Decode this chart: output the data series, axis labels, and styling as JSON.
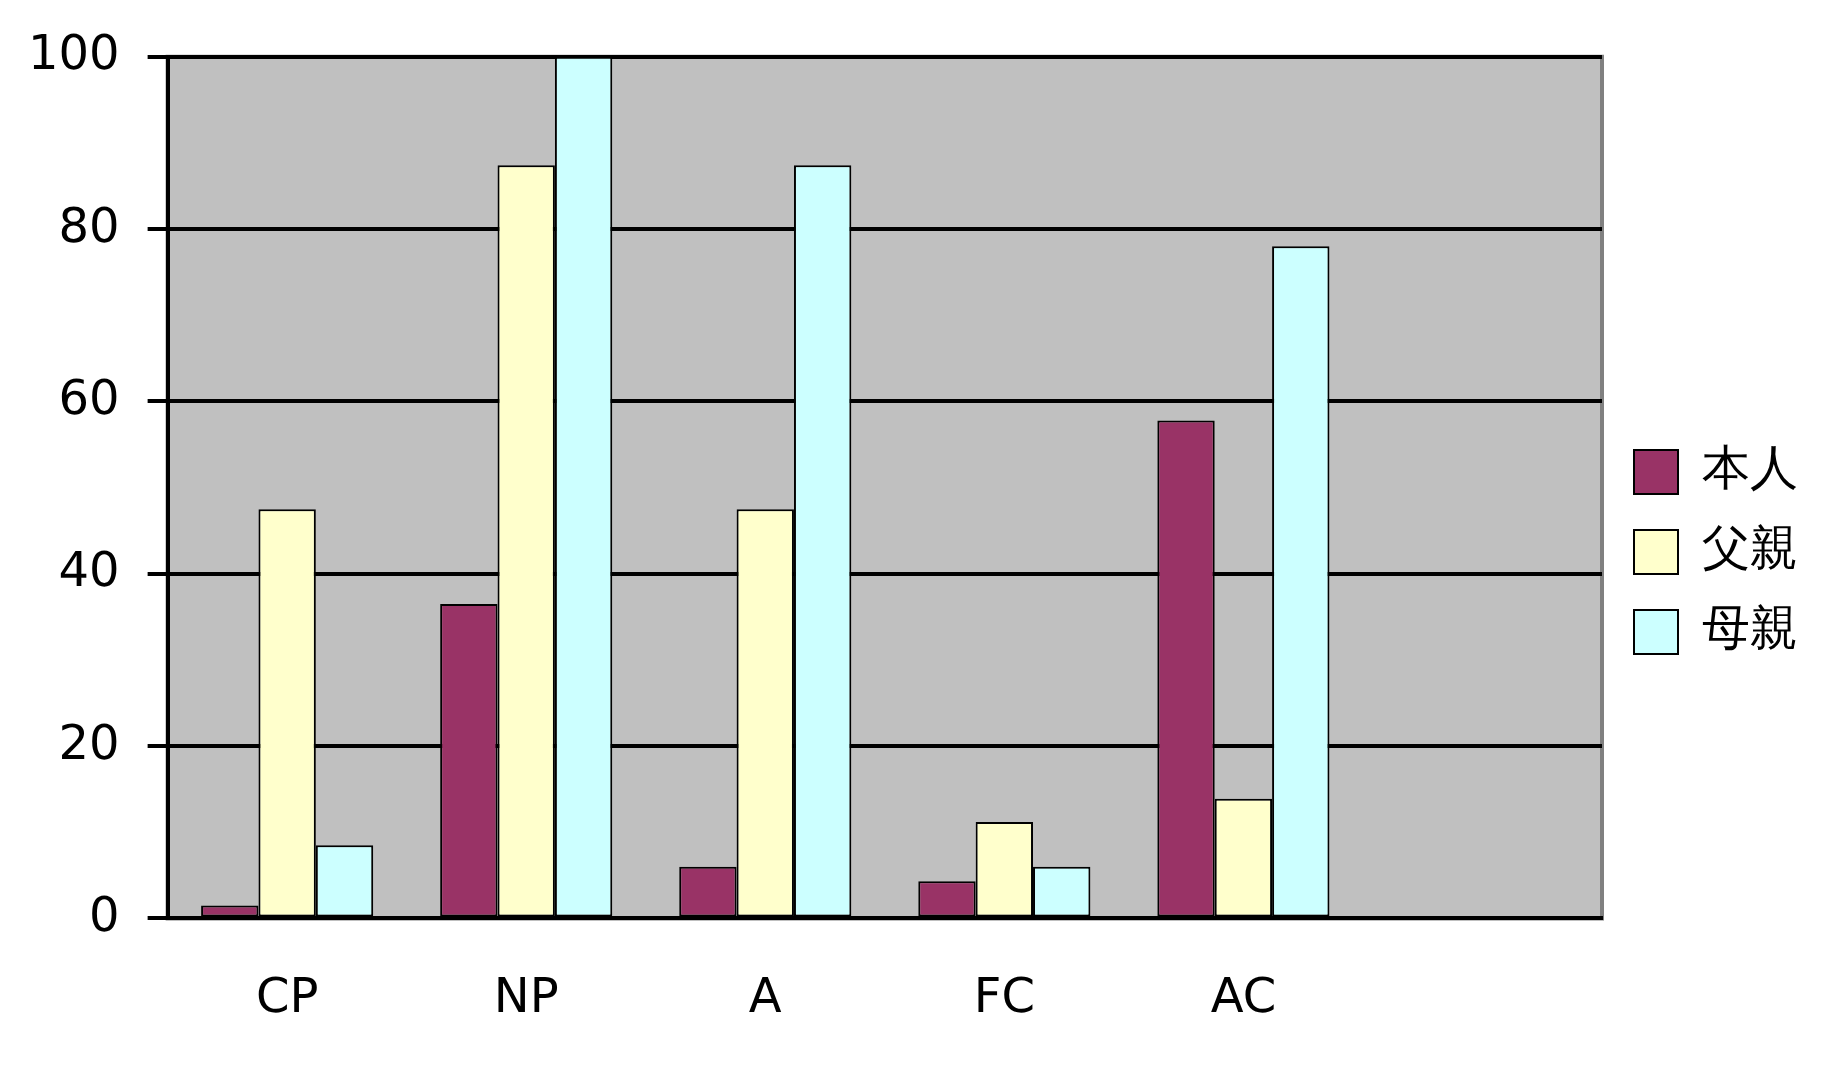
{
  "chart_data": {
    "type": "bar",
    "categories": [
      "CP",
      "NP",
      "A",
      "FC",
      "AC",
      null
    ],
    "series": [
      {
        "name": "本人",
        "color": "#993366",
        "values": [
          1.5,
          36.5,
          6,
          4.3,
          57.8,
          null
        ]
      },
      {
        "name": "父親",
        "color": "#ffffcc",
        "values": [
          47.5,
          87.4,
          47.5,
          11.2,
          13.9,
          null
        ]
      },
      {
        "name": "母親",
        "color": "#ccffff",
        "values": [
          8.5,
          100,
          87.4,
          6,
          78,
          null
        ]
      }
    ],
    "ylim": [
      0,
      100
    ],
    "yticks": [
      0,
      20,
      40,
      60,
      80,
      100
    ],
    "grid": "y",
    "legend": "right"
  }
}
